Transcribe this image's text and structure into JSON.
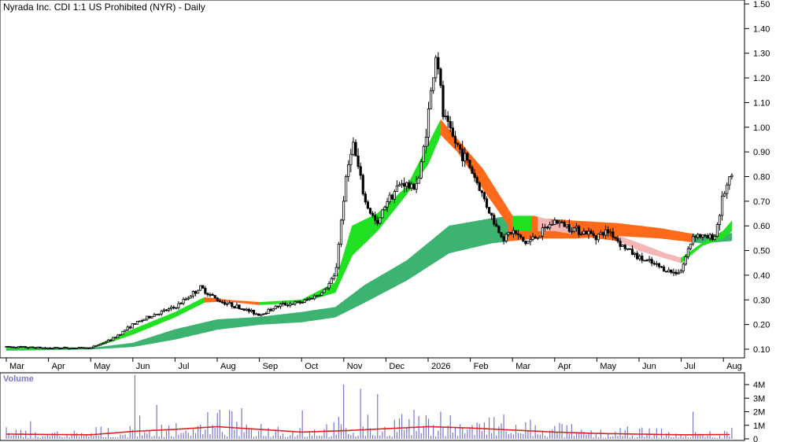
{
  "colors": {
    "short_up": "#22e022",
    "short_down": "#ff6a1a",
    "short_down_light": "#f6b6b6",
    "long_up": "#3cb371",
    "long_down": "#ff6a1a",
    "candle": "#000000",
    "volume_bar": "#7777cc",
    "volume_avg": "#e02020",
    "volume_title": "#7777cc"
  },
  "chart_data": [
    {
      "type": "candlestick",
      "title": "Nyrada Inc. CDI 1:1 US Prohibited (NYR) - Daily",
      "x_labels": [
        "Mar",
        "Apr",
        "May",
        "Jun",
        "Jul",
        "Aug",
        "Sep",
        "Oct",
        "Nov",
        "Dec",
        "2026",
        "Feb",
        "Mar",
        "Apr",
        "May",
        "Jun",
        "Jul",
        "Aug"
      ],
      "x_label_months_index": [
        0,
        1,
        2,
        3,
        4,
        5,
        6,
        7,
        8,
        9,
        10,
        11,
        12,
        13,
        14,
        15,
        16,
        17
      ],
      "y_ticks": [
        0.1,
        0.2,
        0.3,
        0.4,
        0.5,
        0.6,
        0.7,
        0.8,
        0.9,
        1.0,
        1.1,
        1.2,
        1.3,
        1.4,
        1.5
      ],
      "y_tick_labels": [
        "0.10",
        "0.20",
        "0.30",
        "0.40",
        "0.50",
        "0.60",
        "0.70",
        "0.80",
        "0.90",
        "1.00",
        "1.10",
        "1.20",
        "1.30",
        "1.40",
        "1.50"
      ],
      "ylim": [
        0.05,
        1.5
      ],
      "xlim_months": [
        0,
        17.5
      ],
      "price_path": [
        [
          0.0,
          0.11
        ],
        [
          1.0,
          0.105
        ],
        [
          2.0,
          0.105
        ],
        [
          2.5,
          0.14
        ],
        [
          3.0,
          0.2
        ],
        [
          3.5,
          0.24
        ],
        [
          4.0,
          0.27
        ],
        [
          4.6,
          0.35
        ],
        [
          5.0,
          0.3
        ],
        [
          5.5,
          0.27
        ],
        [
          6.0,
          0.24
        ],
        [
          6.5,
          0.28
        ],
        [
          7.0,
          0.29
        ],
        [
          7.5,
          0.33
        ],
        [
          7.8,
          0.4
        ],
        [
          8.0,
          0.72
        ],
        [
          8.2,
          0.95
        ],
        [
          8.5,
          0.7
        ],
        [
          8.8,
          0.6
        ],
        [
          9.0,
          0.7
        ],
        [
          9.4,
          0.78
        ],
        [
          9.6,
          0.75
        ],
        [
          9.8,
          0.8
        ],
        [
          10.0,
          1.05
        ],
        [
          10.2,
          1.32
        ],
        [
          10.35,
          1.05
        ],
        [
          10.6,
          0.95
        ],
        [
          10.9,
          0.87
        ],
        [
          11.1,
          0.8
        ],
        [
          11.3,
          0.72
        ],
        [
          11.6,
          0.6
        ],
        [
          11.8,
          0.55
        ],
        [
          12.0,
          0.58
        ],
        [
          12.3,
          0.53
        ],
        [
          12.6,
          0.56
        ],
        [
          13.0,
          0.62
        ],
        [
          13.3,
          0.6
        ],
        [
          13.6,
          0.58
        ],
        [
          14.0,
          0.56
        ],
        [
          14.3,
          0.58
        ],
        [
          14.6,
          0.52
        ],
        [
          15.0,
          0.47
        ],
        [
          15.4,
          0.44
        ],
        [
          15.8,
          0.41
        ],
        [
          16.0,
          0.42
        ],
        [
          16.3,
          0.57
        ],
        [
          16.6,
          0.55
        ],
        [
          16.8,
          0.56
        ],
        [
          17.0,
          0.73
        ],
        [
          17.2,
          0.8
        ]
      ],
      "short_term_band": [
        [
          0.0,
          0.1,
          0.105
        ],
        [
          2.0,
          0.102,
          0.106
        ],
        [
          3.0,
          0.16,
          0.18
        ],
        [
          4.0,
          0.23,
          0.25
        ],
        [
          4.7,
          0.29,
          0.31
        ],
        [
          5.2,
          0.295,
          0.3
        ],
        [
          6.0,
          0.28,
          0.29
        ],
        [
          7.0,
          0.29,
          0.3
        ],
        [
          7.8,
          0.33,
          0.37
        ],
        [
          8.2,
          0.48,
          0.6
        ],
        [
          8.8,
          0.58,
          0.65
        ],
        [
          9.5,
          0.73,
          0.76
        ],
        [
          10.0,
          0.85,
          0.93
        ],
        [
          10.3,
          0.97,
          1.03
        ],
        [
          10.7,
          0.9,
          0.95
        ],
        [
          11.3,
          0.75,
          0.83
        ],
        [
          12.0,
          0.58,
          0.64
        ],
        [
          12.5,
          0.58,
          0.64
        ],
        [
          13.0,
          0.58,
          0.62
        ],
        [
          14.0,
          0.55,
          0.58
        ],
        [
          14.5,
          0.54,
          0.56
        ],
        [
          15.0,
          0.5,
          0.53
        ],
        [
          15.6,
          0.47,
          0.49
        ],
        [
          16.0,
          0.45,
          0.47
        ],
        [
          16.5,
          0.52,
          0.53
        ],
        [
          17.0,
          0.55,
          0.58
        ],
        [
          17.2,
          0.58,
          0.62
        ]
      ],
      "long_term_band": [
        [
          0.0,
          0.095,
          0.1
        ],
        [
          2.0,
          0.1,
          0.104
        ],
        [
          3.0,
          0.11,
          0.125
        ],
        [
          4.0,
          0.14,
          0.18
        ],
        [
          5.0,
          0.18,
          0.22
        ],
        [
          6.0,
          0.2,
          0.23
        ],
        [
          7.0,
          0.21,
          0.25
        ],
        [
          7.8,
          0.23,
          0.27
        ],
        [
          8.5,
          0.29,
          0.36
        ],
        [
          9.5,
          0.38,
          0.46
        ],
        [
          10.5,
          0.49,
          0.6
        ],
        [
          11.5,
          0.53,
          0.63
        ],
        [
          12.0,
          0.54,
          0.64
        ],
        [
          12.6,
          0.55,
          0.63
        ],
        [
          13.5,
          0.55,
          0.62
        ],
        [
          14.5,
          0.56,
          0.61
        ],
        [
          15.5,
          0.55,
          0.59
        ],
        [
          16.5,
          0.53,
          0.56
        ],
        [
          17.2,
          0.54,
          0.57
        ]
      ]
    },
    {
      "type": "bar",
      "title": "Volume",
      "y_ticks": [
        0,
        1000000,
        2000000,
        3000000,
        4000000
      ],
      "y_tick_labels": [
        "0",
        "1M",
        "2M",
        "3M",
        "4M"
      ],
      "ylim": [
        0,
        4800000
      ],
      "volume_seed": 7,
      "volume_average_path": [
        [
          0.0,
          350000
        ],
        [
          2.0,
          300000
        ],
        [
          3.0,
          550000
        ],
        [
          4.0,
          700000
        ],
        [
          5.0,
          900000
        ],
        [
          6.0,
          700000
        ],
        [
          7.0,
          500000
        ],
        [
          8.0,
          600000
        ],
        [
          9.0,
          750000
        ],
        [
          10.0,
          900000
        ],
        [
          11.0,
          800000
        ],
        [
          12.0,
          650000
        ],
        [
          13.0,
          500000
        ],
        [
          14.0,
          400000
        ],
        [
          15.0,
          350000
        ],
        [
          16.0,
          300000
        ],
        [
          17.2,
          320000
        ]
      ],
      "volume_spikes": [
        [
          3.05,
          4700000
        ],
        [
          3.55,
          2500000
        ],
        [
          8.0,
          4000000
        ],
        [
          8.4,
          3700000
        ],
        [
          8.8,
          3300000
        ],
        [
          10.3,
          2000000
        ],
        [
          11.8,
          1800000
        ],
        [
          16.3,
          2000000
        ],
        [
          7.0,
          2100000
        ],
        [
          5.0,
          1900000
        ],
        [
          0.6,
          1300000
        ],
        [
          9.3,
          1500000
        ],
        [
          13.2,
          1100000
        ]
      ]
    }
  ]
}
